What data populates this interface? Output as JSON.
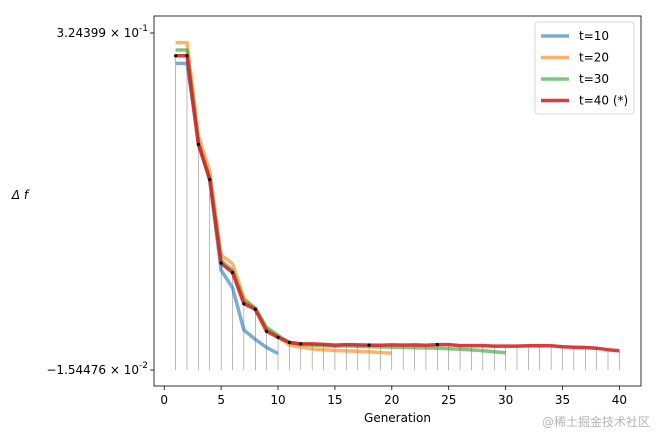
{
  "chart_data": {
    "type": "line",
    "xlabel": "Generation",
    "ylabel": "Δ f",
    "xlim": [
      -0.9,
      41.9
    ],
    "ylim": [
      -0.0154476,
      0.324399
    ],
    "x_ticks": [
      0,
      5,
      10,
      15,
      20,
      25,
      30,
      35,
      40
    ],
    "y_ticks": [
      {
        "value": 0.324399,
        "mantissa": "3.24399",
        "exponent": "-1"
      },
      {
        "value": -0.0154476,
        "mantissa": "−1.54476",
        "exponent": "-2"
      }
    ],
    "grid": false,
    "legend": "top-right",
    "series": [
      {
        "name": "t=10",
        "color": "#1f77b4",
        "opacity": 0.6,
        "width": 3.5,
        "x": [
          1,
          2,
          3,
          4,
          5,
          6,
          7,
          8,
          9,
          10
        ],
        "y": [
          0.2937,
          0.2937,
          0.2147,
          0.1754,
          0.0852,
          0.0675,
          0.0249,
          0.0155,
          0.0072,
          0.0012
        ]
      },
      {
        "name": "t=20",
        "color": "#ff7f0e",
        "opacity": 0.6,
        "width": 3.5,
        "x": [
          1,
          2,
          3,
          4,
          5,
          6,
          7,
          8,
          9,
          10,
          11,
          12,
          13,
          14,
          15,
          16,
          17,
          18,
          19,
          20
        ],
        "y": [
          0.3147,
          0.3147,
          0.2208,
          0.1849,
          0.1005,
          0.0919,
          0.0576,
          0.0454,
          0.0262,
          0.0181,
          0.0097,
          0.0075,
          0.0058,
          0.005,
          0.0042,
          0.0038,
          0.0034,
          0.003,
          0.0022,
          0.0015
        ]
      },
      {
        "name": "t=30",
        "color": "#2ca02c",
        "opacity": 0.6,
        "width": 3.5,
        "x": [
          1,
          2,
          3,
          4,
          5,
          6,
          7,
          8,
          9,
          10,
          11,
          12,
          13,
          14,
          15,
          16,
          17,
          18,
          19,
          20,
          21,
          22,
          23,
          24,
          25,
          26,
          27,
          28,
          29,
          30
        ],
        "y": [
          0.3073,
          0.3073,
          0.2136,
          0.1775,
          0.095,
          0.0851,
          0.0545,
          0.0474,
          0.0274,
          0.0195,
          0.012,
          0.0104,
          0.0097,
          0.0092,
          0.0086,
          0.009,
          0.0085,
          0.008,
          0.0077,
          0.0076,
          0.0073,
          0.007,
          0.0068,
          0.0065,
          0.006,
          0.0055,
          0.0048,
          0.004,
          0.003,
          0.002
        ]
      },
      {
        "name": "t=40 (*)",
        "color": "#d62728",
        "opacity": 0.9,
        "width": 3.5,
        "x": [
          1,
          2,
          3,
          4,
          5,
          6,
          7,
          8,
          9,
          10,
          11,
          12,
          13,
          14,
          15,
          16,
          17,
          18,
          19,
          20,
          21,
          22,
          23,
          24,
          25,
          26,
          27,
          28,
          29,
          30,
          31,
          32,
          33,
          34,
          35,
          36,
          37,
          38,
          39,
          40
        ],
        "y": [
          0.3014,
          0.3014,
          0.2121,
          0.1766,
          0.0923,
          0.0829,
          0.0513,
          0.0459,
          0.0236,
          0.0175,
          0.0124,
          0.0109,
          0.0109,
          0.0104,
          0.0097,
          0.0102,
          0.0099,
          0.0097,
          0.0095,
          0.0099,
          0.0097,
          0.0099,
          0.0095,
          0.0102,
          0.0102,
          0.0092,
          0.0092,
          0.0092,
          0.0087,
          0.0087,
          0.0087,
          0.009,
          0.0092,
          0.009,
          0.008,
          0.0075,
          0.0072,
          0.0065,
          0.005,
          0.004
        ]
      }
    ],
    "markers": {
      "x": [
        1,
        2,
        3,
        4,
        5,
        6,
        7,
        8,
        9,
        10,
        11,
        12,
        18,
        24
      ],
      "y": [
        0.3014,
        0.3014,
        0.2121,
        0.1766,
        0.0923,
        0.0829,
        0.0513,
        0.0459,
        0.0236,
        0.0175,
        0.0124,
        0.0109,
        0.0097,
        0.0102
      ]
    }
  },
  "watermark": "@稀土掘金技术社区"
}
